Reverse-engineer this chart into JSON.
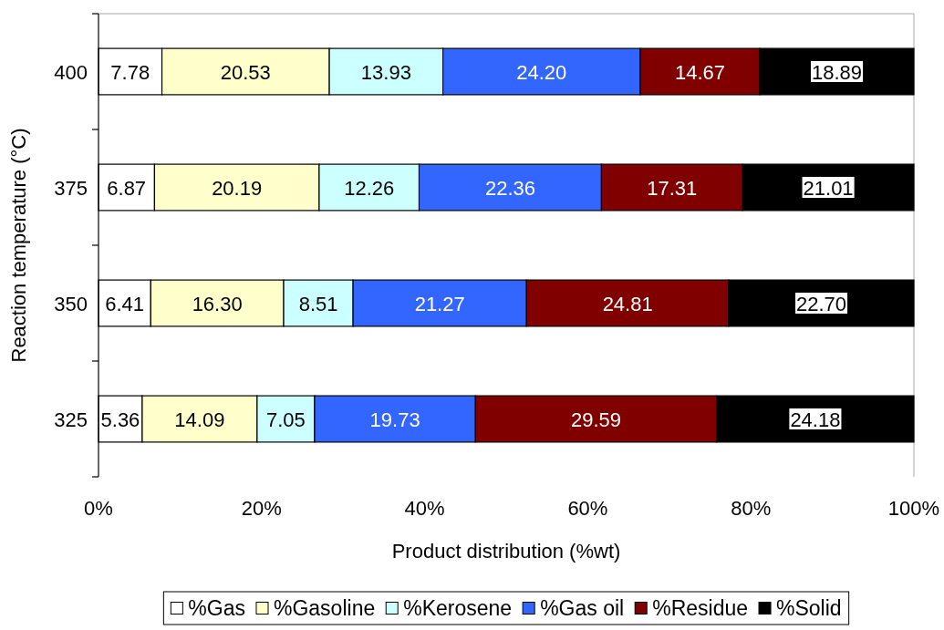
{
  "chart_data": {
    "type": "bar",
    "orientation": "horizontal",
    "stacked": true,
    "categories": [
      "400",
      "375",
      "350",
      "325"
    ],
    "xlabel": "Product distribution (%wt)",
    "ylabel": "Reaction temperature (°C)",
    "xlim": [
      0,
      100
    ],
    "xticks": [
      {
        "value": 0,
        "label": "0%"
      },
      {
        "value": 20,
        "label": "20%"
      },
      {
        "value": 40,
        "label": "40%"
      },
      {
        "value": 60,
        "label": "60%"
      },
      {
        "value": 80,
        "label": "80%"
      },
      {
        "value": 100,
        "label": "100%"
      }
    ],
    "legend": "bottom",
    "series": [
      {
        "name": "%Gas",
        "color": "#ffffff",
        "values": [
          7.78,
          6.87,
          6.41,
          5.36
        ],
        "value_labels": [
          "7.78",
          "6.87",
          "6.41",
          "5.36"
        ]
      },
      {
        "name": "%Gasoline",
        "color": "#ffffcc",
        "values": [
          20.53,
          20.19,
          16.3,
          14.09
        ],
        "value_labels": [
          "20.53",
          "20.19",
          "16.30",
          "14.09"
        ]
      },
      {
        "name": "%Kerosene",
        "color": "#ccffff",
        "values": [
          13.93,
          12.26,
          8.51,
          7.05
        ],
        "value_labels": [
          "13.93",
          "12.26",
          "8.51",
          "7.05"
        ]
      },
      {
        "name": "%Gas oil",
        "color": "#3366ff",
        "values": [
          24.2,
          22.36,
          21.27,
          19.73
        ],
        "value_labels": [
          "24.20",
          "22.36",
          "21.27",
          "19.73"
        ]
      },
      {
        "name": "%Residue",
        "color": "#800000",
        "values": [
          14.67,
          17.31,
          24.81,
          29.59
        ],
        "value_labels": [
          "14.67",
          "17.31",
          "24.81",
          "29.59"
        ]
      },
      {
        "name": "%Solid",
        "color": "#000000",
        "values": [
          18.89,
          21.01,
          22.7,
          24.18
        ],
        "value_labels": [
          "18.89",
          "21.01",
          "22.70",
          "24.18"
        ]
      }
    ]
  }
}
